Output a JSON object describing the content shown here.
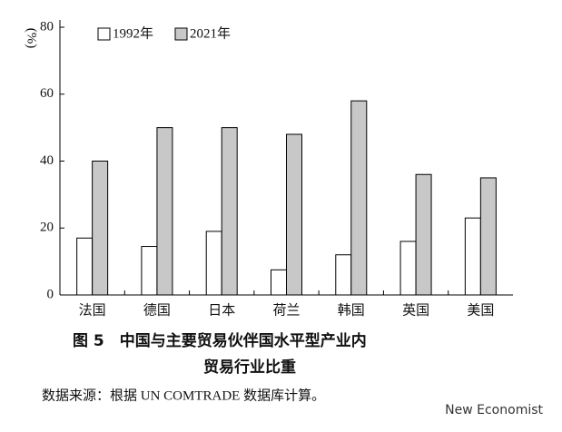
{
  "chart_data": {
    "type": "grouped-bar",
    "title": [
      "图 5　中国与主要贸易伙伴国水平型产业内",
      "贸易行业比重"
    ],
    "source": "数据来源：根据 UN COMTRADE 数据库计算。",
    "y_label": "(%)",
    "categories": [
      "法国",
      "德国",
      "日本",
      "荷兰",
      "韩国",
      "英国",
      "美国"
    ],
    "series": [
      {
        "name": "1992年",
        "color": "#ffffff",
        "values": [
          17,
          14.5,
          19,
          7.5,
          12,
          16,
          23
        ]
      },
      {
        "name": "2021年",
        "color": "#c8c8c8",
        "values": [
          40,
          50,
          50,
          48,
          58,
          36,
          35
        ]
      }
    ],
    "ylim": [
      0,
      80
    ],
    "yticks": [
      0,
      20,
      40,
      60,
      80
    ],
    "grid": false
  },
  "watermark": "New Economist"
}
